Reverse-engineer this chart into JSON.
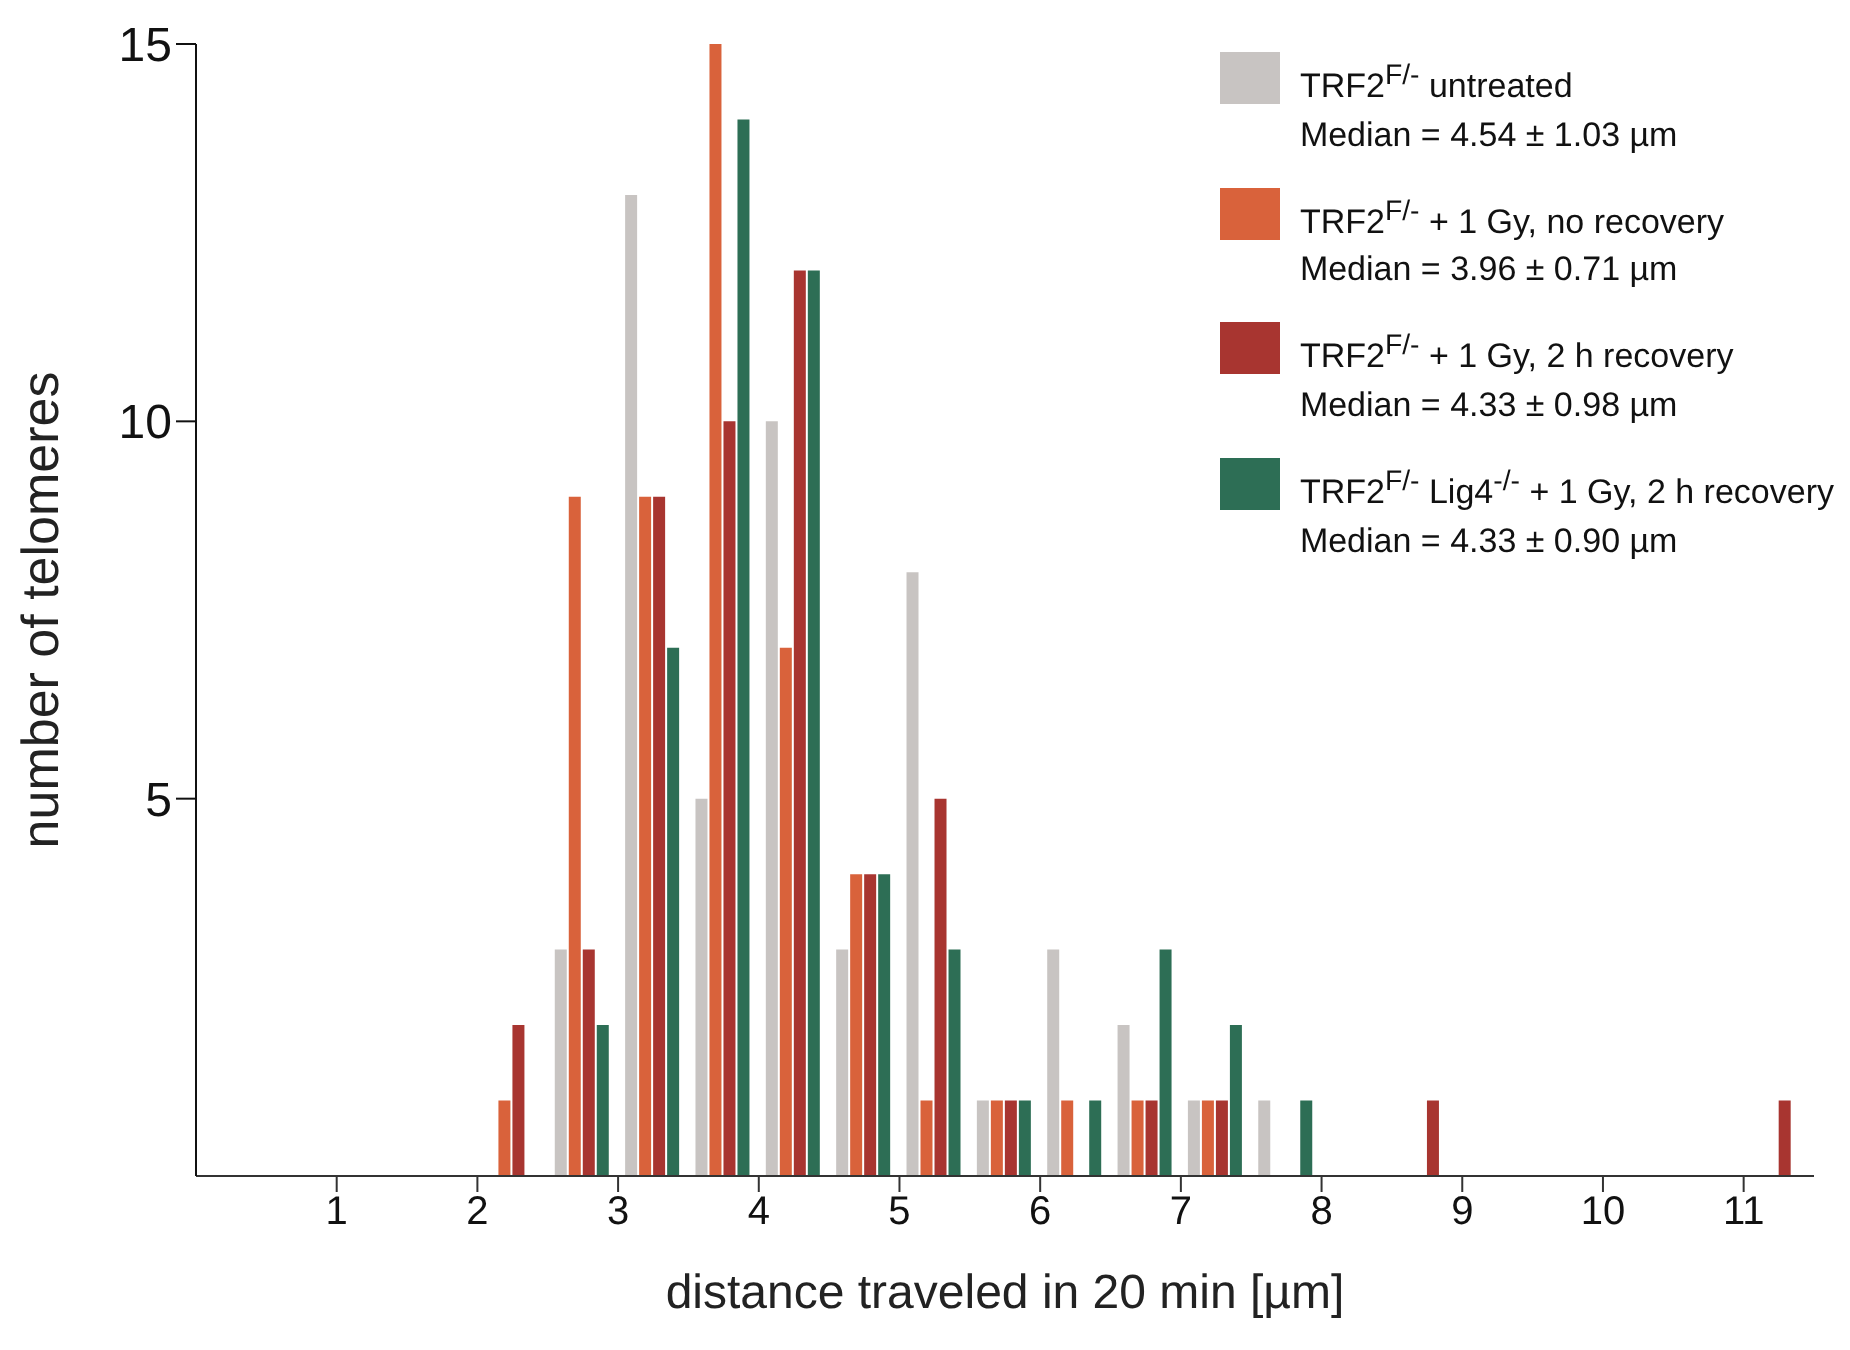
{
  "chart_data": {
    "type": "histogram",
    "xlabel": "distance traveled in 20 min [µm]",
    "ylabel": "number of telomeres",
    "bins": [
      0,
      0.5,
      1,
      1.5,
      2,
      2.5,
      3,
      3.5,
      4,
      4.5,
      5,
      5.5,
      6,
      6.5,
      7,
      7.5,
      8,
      8.5,
      9,
      9.5,
      10,
      10.5,
      11,
      11.5
    ],
    "series": [
      {
        "name": "TRF2$^{F/-}$ untreated\nMedian = 4.54 ± 1.03 µm",
        "color": "#c8c4c2",
        "values": [
          0,
          0,
          0,
          0,
          0,
          3,
          13,
          5,
          10,
          3,
          8,
          1,
          3,
          2,
          1,
          1,
          0,
          0,
          0,
          0,
          0,
          0,
          0
        ]
      },
      {
        "name": "TRF2$^{F/-}$ + 1 Gy, no recovery\nMedian = 3.96 ± 0.71 µm",
        "color": "#d9623b",
        "values": [
          0,
          0,
          0,
          0,
          1,
          9,
          9,
          15,
          7,
          4,
          1,
          1,
          1,
          1,
          1,
          0,
          0,
          0,
          0,
          0,
          0,
          0,
          0
        ]
      },
      {
        "name": "TRF2$^{F/-}$ + 1 Gy, 2 h recovery\nMedian = 4.33 ± 0.98 µm",
        "color": "#a83530",
        "values": [
          0,
          0,
          0,
          0,
          2,
          3,
          9,
          10,
          12,
          4,
          5,
          1,
          0,
          1,
          1,
          0,
          0,
          1,
          0,
          0,
          0,
          0,
          1
        ]
      },
      {
        "name": "TRF2$^{F/-}$ Lig4$^{-/-}$ + 1 Gy, 2 h recovery\nMedian = 4.33 ± 0.90 µm",
        "color": "#2d6e55",
        "values": [
          0,
          0,
          0,
          0,
          0,
          2,
          7,
          14,
          12,
          4,
          3,
          1,
          1,
          3,
          2,
          1,
          0,
          0,
          0,
          0,
          0,
          0,
          0
        ]
      }
    ],
    "xlim": [
      0,
      11.5
    ],
    "xticks": [
      1,
      2,
      3,
      4,
      5,
      6,
      7,
      8,
      9,
      10,
      11
    ],
    "ylim": [
      0,
      15
    ],
    "yticks": [
      5,
      10,
      15
    ],
    "grid": false,
    "legend": "top right"
  }
}
